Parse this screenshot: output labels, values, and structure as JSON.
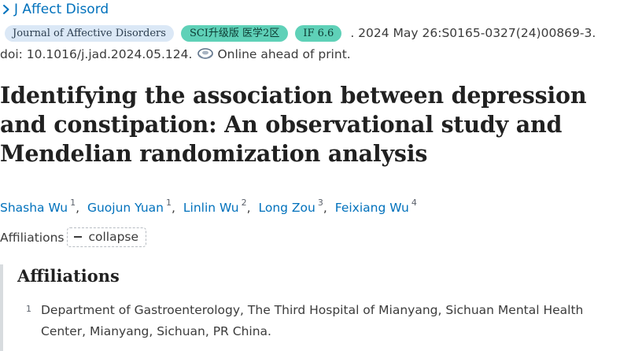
{
  "journal_link": {
    "label": "J Affect Disord"
  },
  "badges": {
    "journal": "Journal of Affective Disorders",
    "sci": "SCI升级版 医学2区",
    "impact_factor": "IF 6.6"
  },
  "citation": {
    "date_text": ". 2024 May 26:S0165-0327(24)00869-3.",
    "doi_text": "doi: 10.1016/j.jad.2024.05.124.",
    "status_text": "Online ahead of print."
  },
  "title": "Identifying the association between depression and constipation: An observational study and Mendelian randomization analysis",
  "authors": [
    {
      "name": "Shasha Wu",
      "affil": "1"
    },
    {
      "name": "Guojun Yuan",
      "affil": "1"
    },
    {
      "name": "Linlin Wu",
      "affil": "2"
    },
    {
      "name": "Long Zou",
      "affil": "3"
    },
    {
      "name": "Feixiang Wu",
      "affil": "4"
    }
  ],
  "affiliations_toggle": {
    "label": "Affiliations",
    "button_label": "collapse"
  },
  "affiliations": {
    "heading": "Affiliations",
    "items": [
      {
        "number": "1",
        "text": "Department of Gastroenterology, The Third Hospital of Mianyang, Sichuan Mental Health Center, Mianyang, Sichuan, PR China."
      }
    ]
  },
  "colors": {
    "link": "#0071bc",
    "badge_green": "#5fd1b8",
    "badge_blue": "#dbe8f6"
  },
  "icons": {
    "journal_chevron": "chevron-right-icon",
    "ahead_of_print": "ahead-of-print-icon"
  }
}
